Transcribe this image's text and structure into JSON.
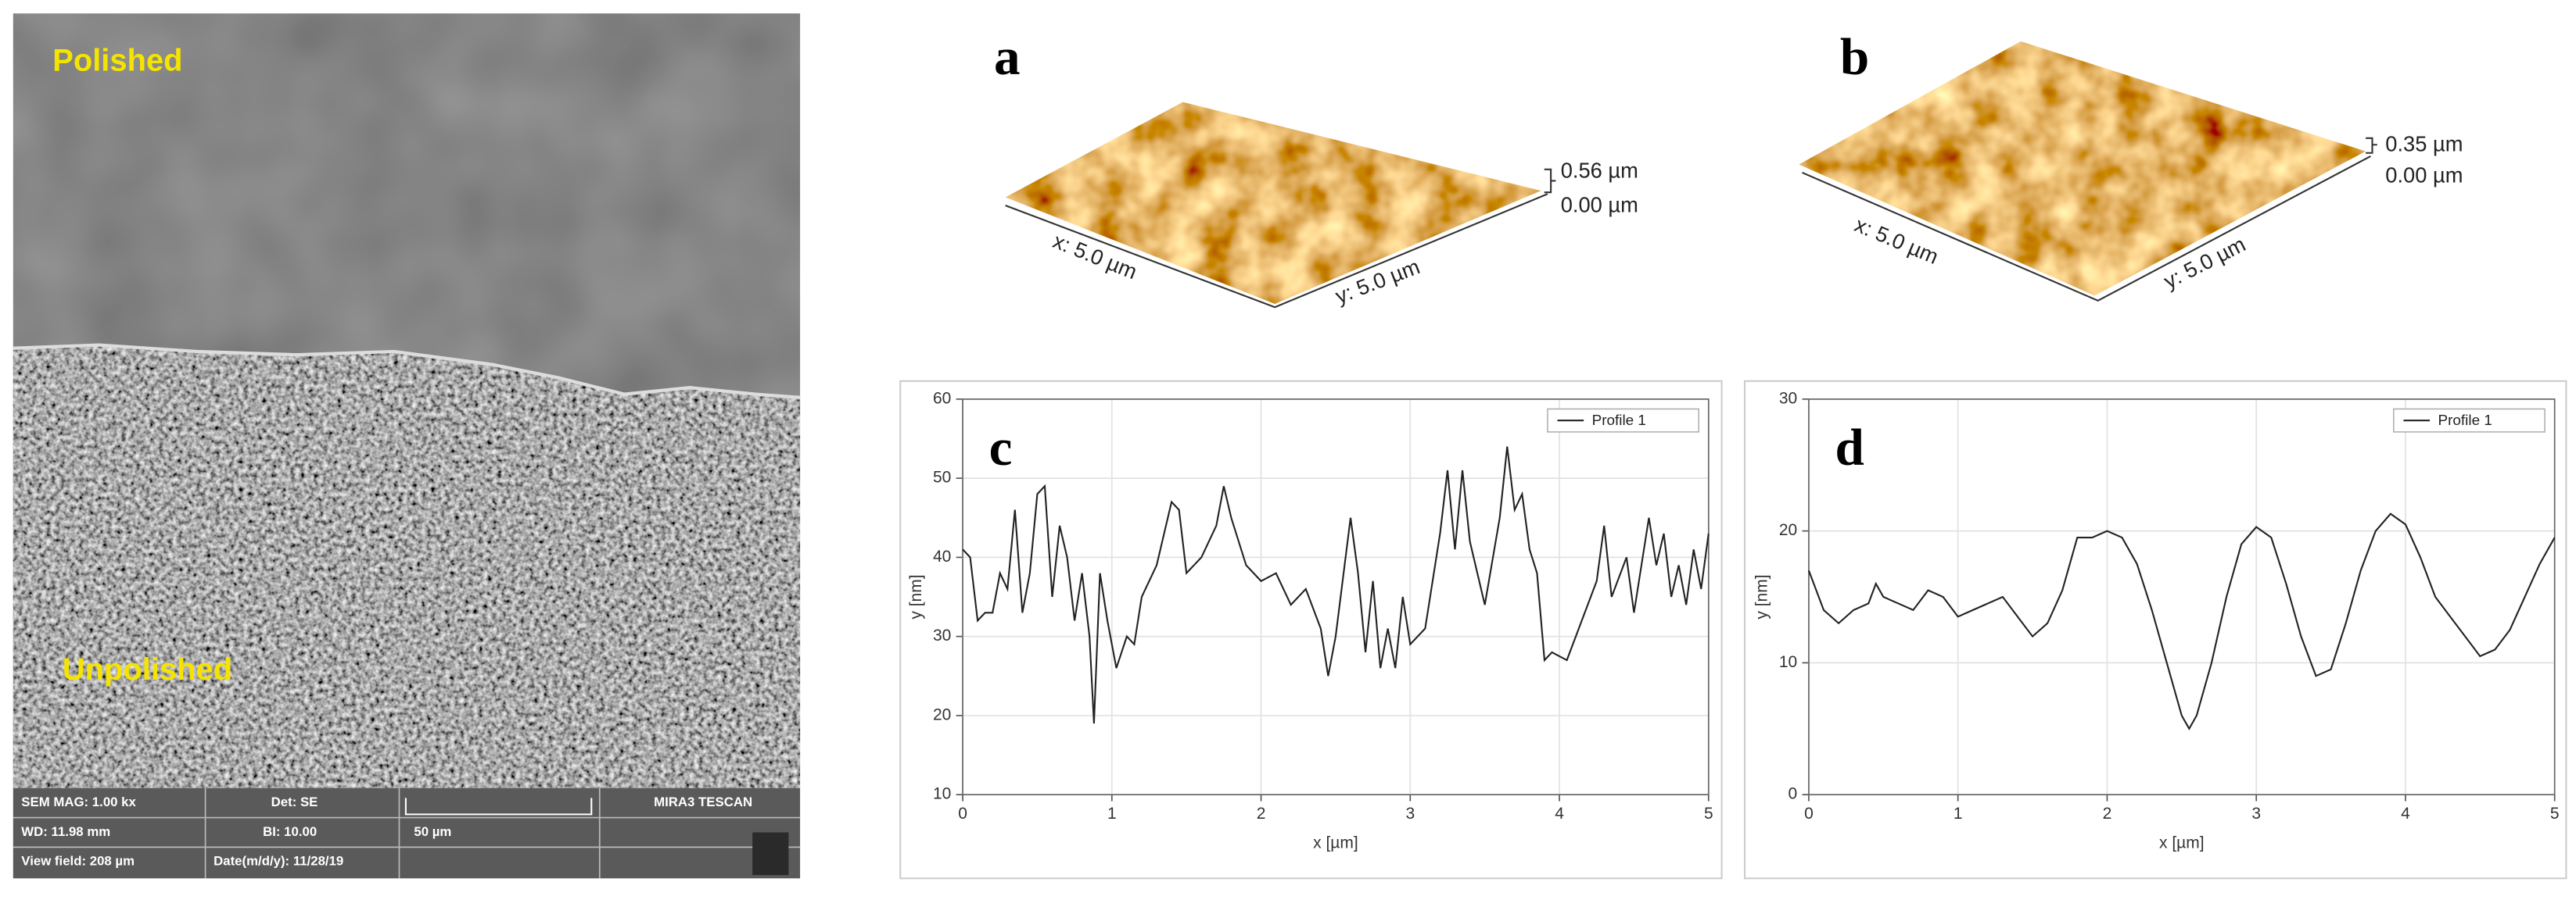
{
  "sem": {
    "label_top": "Polished",
    "label_bottom": "Unpolished",
    "info": {
      "mag": "SEM MAG: 1.00 kx",
      "det": "Det: SE",
      "brand": "MIRA3 TESCAN",
      "wd": "WD: 11.98 mm",
      "bi": "BI: 10.00",
      "scale": "50 µm",
      "view_field": "View field: 208 µm",
      "date": "Date(m/d/y): 11/28/19"
    }
  },
  "afm": [
    {
      "label": "a",
      "z_max": "0.56 µm",
      "z_min": "0.00 µm",
      "x_size": "x: 5.0 µm",
      "y_size": "y: 5.0 µm"
    },
    {
      "label": "b",
      "z_max": "0.35 µm",
      "z_min": "0.00 µm",
      "x_size": "x: 5.0 µm",
      "y_size": "y: 5.0 µm"
    }
  ],
  "chart_data": [
    {
      "type": "line",
      "panel_label": "c",
      "x_label": "x [µm]",
      "y_label": "y [nm]",
      "x": [
        0,
        0.05,
        0.1,
        0.15,
        0.2,
        0.25,
        0.3,
        0.35,
        0.4,
        0.45,
        0.5,
        0.55,
        0.6,
        0.65,
        0.7,
        0.75,
        0.8,
        0.85,
        0.88,
        0.92,
        0.97,
        1.03,
        1.1,
        1.15,
        1.2,
        1.3,
        1.4,
        1.45,
        1.5,
        1.6,
        1.7,
        1.75,
        1.8,
        1.9,
        2.0,
        2.1,
        2.2,
        2.3,
        2.4,
        2.45,
        2.5,
        2.6,
        2.65,
        2.7,
        2.75,
        2.8,
        2.85,
        2.9,
        2.95,
        3.0,
        3.1,
        3.2,
        3.25,
        3.3,
        3.35,
        3.4,
        3.5,
        3.6,
        3.65,
        3.7,
        3.75,
        3.8,
        3.85,
        3.9,
        3.95,
        4.05,
        4.15,
        4.25,
        4.3,
        4.35,
        4.45,
        4.5,
        4.6,
        4.65,
        4.7,
        4.75,
        4.8,
        4.85,
        4.9,
        4.95,
        5.0
      ],
      "series": [
        {
          "name": "Profile 1",
          "color": "#222222",
          "values": [
            41,
            40,
            32,
            33,
            33,
            38,
            36,
            46,
            33,
            38,
            48,
            49,
            35,
            44,
            40,
            32,
            38,
            30,
            19,
            38,
            32,
            26,
            30,
            29,
            35,
            39,
            47,
            46,
            38,
            40,
            44,
            49,
            45,
            39,
            37,
            38,
            34,
            36,
            31,
            25,
            30,
            45,
            38,
            28,
            37,
            26,
            31,
            26,
            35,
            29,
            31,
            43,
            51,
            41,
            51,
            42,
            34,
            45,
            54,
            46,
            48,
            41,
            38,
            27,
            28,
            27,
            32,
            37,
            44,
            35,
            40,
            33,
            45,
            39,
            43,
            35,
            39,
            34,
            41,
            36,
            43
          ]
        }
      ],
      "xlim": [
        0,
        5
      ],
      "ylim": [
        10,
        60
      ],
      "xticks": [
        0,
        1,
        2,
        3,
        4,
        5
      ],
      "yticks": [
        10,
        20,
        30,
        40,
        50,
        60
      ],
      "grid": true,
      "legend": "upper right"
    },
    {
      "type": "line",
      "panel_label": "d",
      "x_label": "x [µm]",
      "y_label": "y [nm]",
      "x": [
        0,
        0.1,
        0.2,
        0.3,
        0.4,
        0.45,
        0.5,
        0.6,
        0.7,
        0.8,
        0.9,
        1.0,
        1.1,
        1.2,
        1.3,
        1.4,
        1.5,
        1.6,
        1.7,
        1.8,
        1.9,
        2.0,
        2.1,
        2.2,
        2.3,
        2.4,
        2.5,
        2.55,
        2.6,
        2.7,
        2.8,
        2.9,
        3.0,
        3.1,
        3.2,
        3.3,
        3.4,
        3.5,
        3.6,
        3.7,
        3.8,
        3.9,
        4.0,
        4.1,
        4.2,
        4.3,
        4.4,
        4.5,
        4.6,
        4.7,
        4.8,
        4.9,
        5.0
      ],
      "series": [
        {
          "name": "Profile 1",
          "color": "#222222",
          "values": [
            17,
            14,
            13,
            14,
            14.5,
            16,
            15,
            14.5,
            14,
            15.5,
            15,
            13.5,
            14,
            14.5,
            15,
            13.5,
            12,
            13,
            15.5,
            19.5,
            19.5,
            20,
            19.5,
            17.5,
            14,
            10,
            6,
            5,
            6,
            10,
            15,
            19,
            20.3,
            19.5,
            16,
            12,
            9,
            9.5,
            13,
            17,
            20,
            21.3,
            20.5,
            18,
            15,
            13.5,
            12,
            10.5,
            11,
            12.5,
            15,
            17.5,
            19.5
          ]
        }
      ],
      "xlim": [
        0,
        5
      ],
      "ylim": [
        0,
        30
      ],
      "xticks": [
        0,
        1,
        2,
        3,
        4,
        5
      ],
      "yticks": [
        0,
        10,
        20,
        30
      ],
      "grid": true,
      "legend": "upper right"
    }
  ]
}
